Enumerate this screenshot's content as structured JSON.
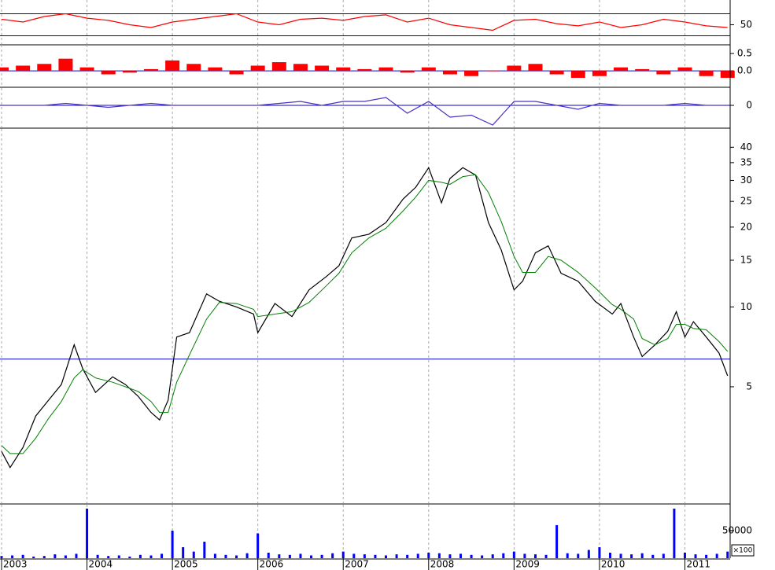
{
  "chart_data": [
    {
      "type": "line",
      "x": [
        2003.0,
        2003.25,
        2003.5,
        2003.75,
        2004.0,
        2004.25,
        2004.5,
        2004.75,
        2005.0,
        2005.25,
        2005.5,
        2005.75,
        2006.0,
        2006.25,
        2006.5,
        2006.75,
        2007.0,
        2007.25,
        2007.5,
        2007.75,
        2008.0,
        2008.25,
        2008.5,
        2008.75,
        2009.0,
        2009.25,
        2009.5,
        2009.75,
        2010.0,
        2010.25,
        2010.5,
        2010.75,
        2011.0,
        2011.25,
        2011.5
      ],
      "series": [
        {
          "color": "#ff0000",
          "values": [
            60,
            55,
            65,
            70,
            62,
            58,
            50,
            45,
            55,
            60,
            65,
            70,
            55,
            50,
            60,
            62,
            58,
            65,
            68,
            55,
            62,
            50,
            45,
            40,
            58,
            60,
            52,
            48,
            55,
            45,
            50,
            60,
            55,
            48,
            45
          ]
        }
      ],
      "xlim": [
        2003.0,
        2011.53
      ],
      "ylim": [
        15,
        95
      ],
      "yticks": [
        50
      ],
      "hlines": [
        30,
        70
      ]
    },
    {
      "type": "bar",
      "x": [
        2003.0,
        2003.25,
        2003.5,
        2003.75,
        2004.0,
        2004.25,
        2004.5,
        2004.75,
        2005.0,
        2005.25,
        2005.5,
        2005.75,
        2006.0,
        2006.25,
        2006.5,
        2006.75,
        2007.0,
        2007.25,
        2007.5,
        2007.75,
        2008.0,
        2008.25,
        2008.5,
        2008.75,
        2009.0,
        2009.25,
        2009.5,
        2009.75,
        2010.0,
        2010.25,
        2010.5,
        2010.75,
        2011.0,
        2011.25,
        2011.5
      ],
      "values": [
        0.1,
        0.15,
        0.2,
        0.35,
        0.1,
        -0.1,
        -0.05,
        0.05,
        0.3,
        0.2,
        0.1,
        -0.1,
        0.15,
        0.25,
        0.2,
        0.15,
        0.1,
        0.05,
        0.1,
        -0.05,
        0.1,
        -0.1,
        -0.15,
        0.0,
        0.15,
        0.2,
        -0.1,
        -0.2,
        -0.15,
        0.1,
        0.05,
        -0.1,
        0.1,
        -0.15,
        -0.2
      ],
      "color": "#ff0000",
      "xlim": [
        2003.0,
        2011.53
      ],
      "ylim": [
        -0.45,
        0.75
      ],
      "yticks": [
        0.5,
        {
          "value": 0,
          "label": "0.0"
        }
      ],
      "hlines": [
        0
      ]
    },
    {
      "type": "line",
      "x": [
        2003.0,
        2003.25,
        2003.5,
        2003.75,
        2004.0,
        2004.25,
        2004.5,
        2004.75,
        2005.0,
        2005.25,
        2005.5,
        2005.75,
        2006.0,
        2006.25,
        2006.5,
        2006.75,
        2007.0,
        2007.25,
        2007.5,
        2007.75,
        2008.0,
        2008.25,
        2008.5,
        2008.75,
        2009.0,
        2009.25,
        2009.5,
        2009.75,
        2010.0,
        2010.25,
        2010.5,
        2010.75,
        2011.0,
        2011.25,
        2011.5
      ],
      "series": [
        {
          "color": "#5030c0",
          "values": [
            0,
            0,
            0,
            0.05,
            0,
            -0.05,
            0,
            0.05,
            0,
            0,
            0,
            0,
            0,
            0.05,
            0.1,
            0,
            0.1,
            0.1,
            0.2,
            -0.2,
            0.1,
            -0.3,
            -0.25,
            -0.5,
            0.1,
            0.1,
            0,
            -0.1,
            0.05,
            0,
            0,
            0,
            0.05,
            0,
            0
          ]
        }
      ],
      "xlim": [
        2003.0,
        2011.53
      ],
      "ylim": [
        -0.56,
        0.44
      ],
      "yticks": [
        0
      ],
      "hlines": [
        0
      ]
    },
    {
      "type": "line",
      "log_y": true,
      "x": [
        2003.0,
        2003.1,
        2003.25,
        2003.4,
        2003.55,
        2003.7,
        2003.85,
        2003.95,
        2004.1,
        2004.3,
        2004.45,
        2004.6,
        2004.75,
        2004.85,
        2004.95,
        2005.05,
        2005.2,
        2005.4,
        2005.55,
        2005.75,
        2005.95,
        2006.0,
        2006.2,
        2006.4,
        2006.6,
        2006.8,
        2006.95,
        2007.1,
        2007.3,
        2007.5,
        2007.7,
        2007.85,
        2008.0,
        2008.15,
        2008.25,
        2008.4,
        2008.55,
        2008.7,
        2008.85,
        2009.0,
        2009.1,
        2009.25,
        2009.4,
        2009.55,
        2009.75,
        2009.95,
        2010.15,
        2010.25,
        2010.4,
        2010.5,
        2010.65,
        2010.8,
        2010.9,
        2011.0,
        2011.1,
        2011.25,
        2011.4,
        2011.5
      ],
      "series": [
        {
          "color": "#000000",
          "values": [
            2.85,
            2.48,
            2.95,
            3.88,
            4.45,
            5.1,
            7.2,
            5.85,
            4.76,
            5.45,
            5.1,
            4.6,
            4.0,
            3.75,
            4.45,
            7.7,
            8.0,
            11.2,
            10.5,
            10.0,
            9.4,
            8.0,
            10.3,
            9.2,
            11.6,
            13.0,
            14.3,
            18.2,
            18.8,
            20.8,
            25.5,
            28.3,
            33.5,
            24.7,
            30.5,
            33.5,
            31.4,
            20.8,
            16.4,
            11.6,
            12.5,
            16.0,
            17.0,
            13.4,
            12.5,
            10.5,
            9.4,
            10.3,
            7.7,
            6.5,
            7.2,
            8.1,
            9.6,
            7.7,
            8.8,
            7.7,
            6.7,
            5.5
          ]
        },
        {
          "color": "#008000",
          "values": [
            3.0,
            2.8,
            2.8,
            3.2,
            3.8,
            4.4,
            5.4,
            5.8,
            5.4,
            5.2,
            5.0,
            4.8,
            4.4,
            4.0,
            4.0,
            5.2,
            6.6,
            9.0,
            10.4,
            10.3,
            9.8,
            9.2,
            9.4,
            9.6,
            10.4,
            12.0,
            13.4,
            16.0,
            18.2,
            19.8,
            23.0,
            26.0,
            30.0,
            29.5,
            29.0,
            31.0,
            31.5,
            27.0,
            21.0,
            15.5,
            13.5,
            13.5,
            15.5,
            15.0,
            13.5,
            11.8,
            10.2,
            9.8,
            9.0,
            7.6,
            7.2,
            7.6,
            8.6,
            8.6,
            8.3,
            8.2,
            7.4,
            6.8
          ]
        }
      ],
      "xlim": [
        2003.0,
        2011.53
      ],
      "ylim": [
        1.82,
        46.9
      ],
      "yticks": [
        5,
        10,
        15,
        20,
        25,
        30,
        35,
        40
      ],
      "hlines": [
        6.36
      ]
    },
    {
      "type": "bar",
      "unit_label": "×100",
      "x": [
        2003.0,
        2003.125,
        2003.25,
        2003.375,
        2003.5,
        2003.625,
        2003.75,
        2003.875,
        2004.0,
        2004.125,
        2004.25,
        2004.375,
        2004.5,
        2004.625,
        2004.75,
        2004.875,
        2005.0,
        2005.125,
        2005.25,
        2005.375,
        2005.5,
        2005.625,
        2005.75,
        2005.875,
        2006.0,
        2006.125,
        2006.25,
        2006.375,
        2006.5,
        2006.625,
        2006.75,
        2006.875,
        2007.0,
        2007.125,
        2007.25,
        2007.375,
        2007.5,
        2007.625,
        2007.75,
        2007.875,
        2008.0,
        2008.125,
        2008.25,
        2008.375,
        2008.5,
        2008.625,
        2008.75,
        2008.875,
        2009.0,
        2009.125,
        2009.25,
        2009.375,
        2009.5,
        2009.625,
        2009.75,
        2009.875,
        2010.0,
        2010.125,
        2010.25,
        2010.375,
        2010.5,
        2010.625,
        2010.75,
        2010.875,
        2011.0,
        2011.125,
        2011.25,
        2011.375,
        2011.5
      ],
      "values": [
        4000,
        5000,
        6000,
        3000,
        4000,
        7000,
        5000,
        8000,
        90000,
        6000,
        4000,
        5000,
        3000,
        6000,
        5000,
        8000,
        50000,
        20000,
        12000,
        30000,
        8000,
        6000,
        5000,
        9000,
        45000,
        10000,
        7000,
        6000,
        8000,
        5000,
        6000,
        9000,
        12000,
        8000,
        7000,
        6000,
        5000,
        7000,
        6000,
        8000,
        10000,
        9000,
        7000,
        8000,
        6000,
        5000,
        7000,
        9000,
        12000,
        8000,
        7000,
        6000,
        60000,
        9000,
        8000,
        15000,
        20000,
        10000,
        8000,
        7000,
        9000,
        6000,
        8000,
        90000,
        10000,
        7000,
        6000,
        8000,
        12000
      ],
      "color": "#0000ff",
      "xlim": [
        2003.0,
        2011.53
      ],
      "ylim": [
        0,
        97000
      ],
      "yticks": [
        50000
      ],
      "xticks": [
        2003,
        2004,
        2005,
        2006,
        2007,
        2008,
        2009,
        2010,
        2011
      ]
    }
  ]
}
